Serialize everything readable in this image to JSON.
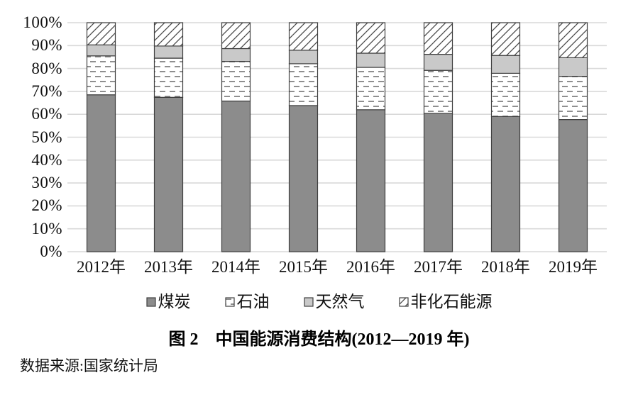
{
  "figure": {
    "title": "图 2　中国能源消费结构(2012—2019 年)",
    "source": "数据来源:国家统计局"
  },
  "colors": {
    "coal_fill": "#8c8c8c",
    "natural_gas_fill": "#c9c9c9",
    "pattern_stroke": "#8f8f8f",
    "hatch_stroke": "#4a4a4a",
    "bar_border": "#3f3f3f",
    "gridline": "#d9d9d9"
  },
  "chart_data": {
    "type": "bar",
    "stacked": true,
    "orientation": "vertical",
    "title": "中国能源消费结构(2012—2019年)",
    "xlabel": "",
    "ylabel": "",
    "ylim": [
      0,
      100
    ],
    "yticks": [
      "0%",
      "10%",
      "20%",
      "30%",
      "40%",
      "50%",
      "60%",
      "70%",
      "80%",
      "90%",
      "100%"
    ],
    "grid": true,
    "legend_position": "bottom",
    "categories": [
      "2012年",
      "2013年",
      "2014年",
      "2015年",
      "2016年",
      "2017年",
      "2018年",
      "2019年"
    ],
    "series": [
      {
        "id": "coal",
        "name": "煤炭",
        "fill": "#8c8c8c",
        "values": [
          68.5,
          67.4,
          65.8,
          63.8,
          62.0,
          60.4,
          59.0,
          57.7
        ]
      },
      {
        "id": "oil",
        "name": "石油",
        "fill": "dash-pattern",
        "values": [
          17.0,
          17.1,
          17.3,
          18.3,
          18.5,
          18.8,
          18.9,
          18.9
        ]
      },
      {
        "id": "natural-gas",
        "name": "天然气",
        "fill": "#c9c9c9",
        "values": [
          4.8,
          5.3,
          5.6,
          5.9,
          6.2,
          7.0,
          7.8,
          8.1
        ]
      },
      {
        "id": "non-fossil-energy",
        "name": "非化石能源",
        "fill": "hatch-pattern",
        "values": [
          9.7,
          10.2,
          11.3,
          12.0,
          13.3,
          13.8,
          14.3,
          15.3
        ]
      }
    ]
  }
}
